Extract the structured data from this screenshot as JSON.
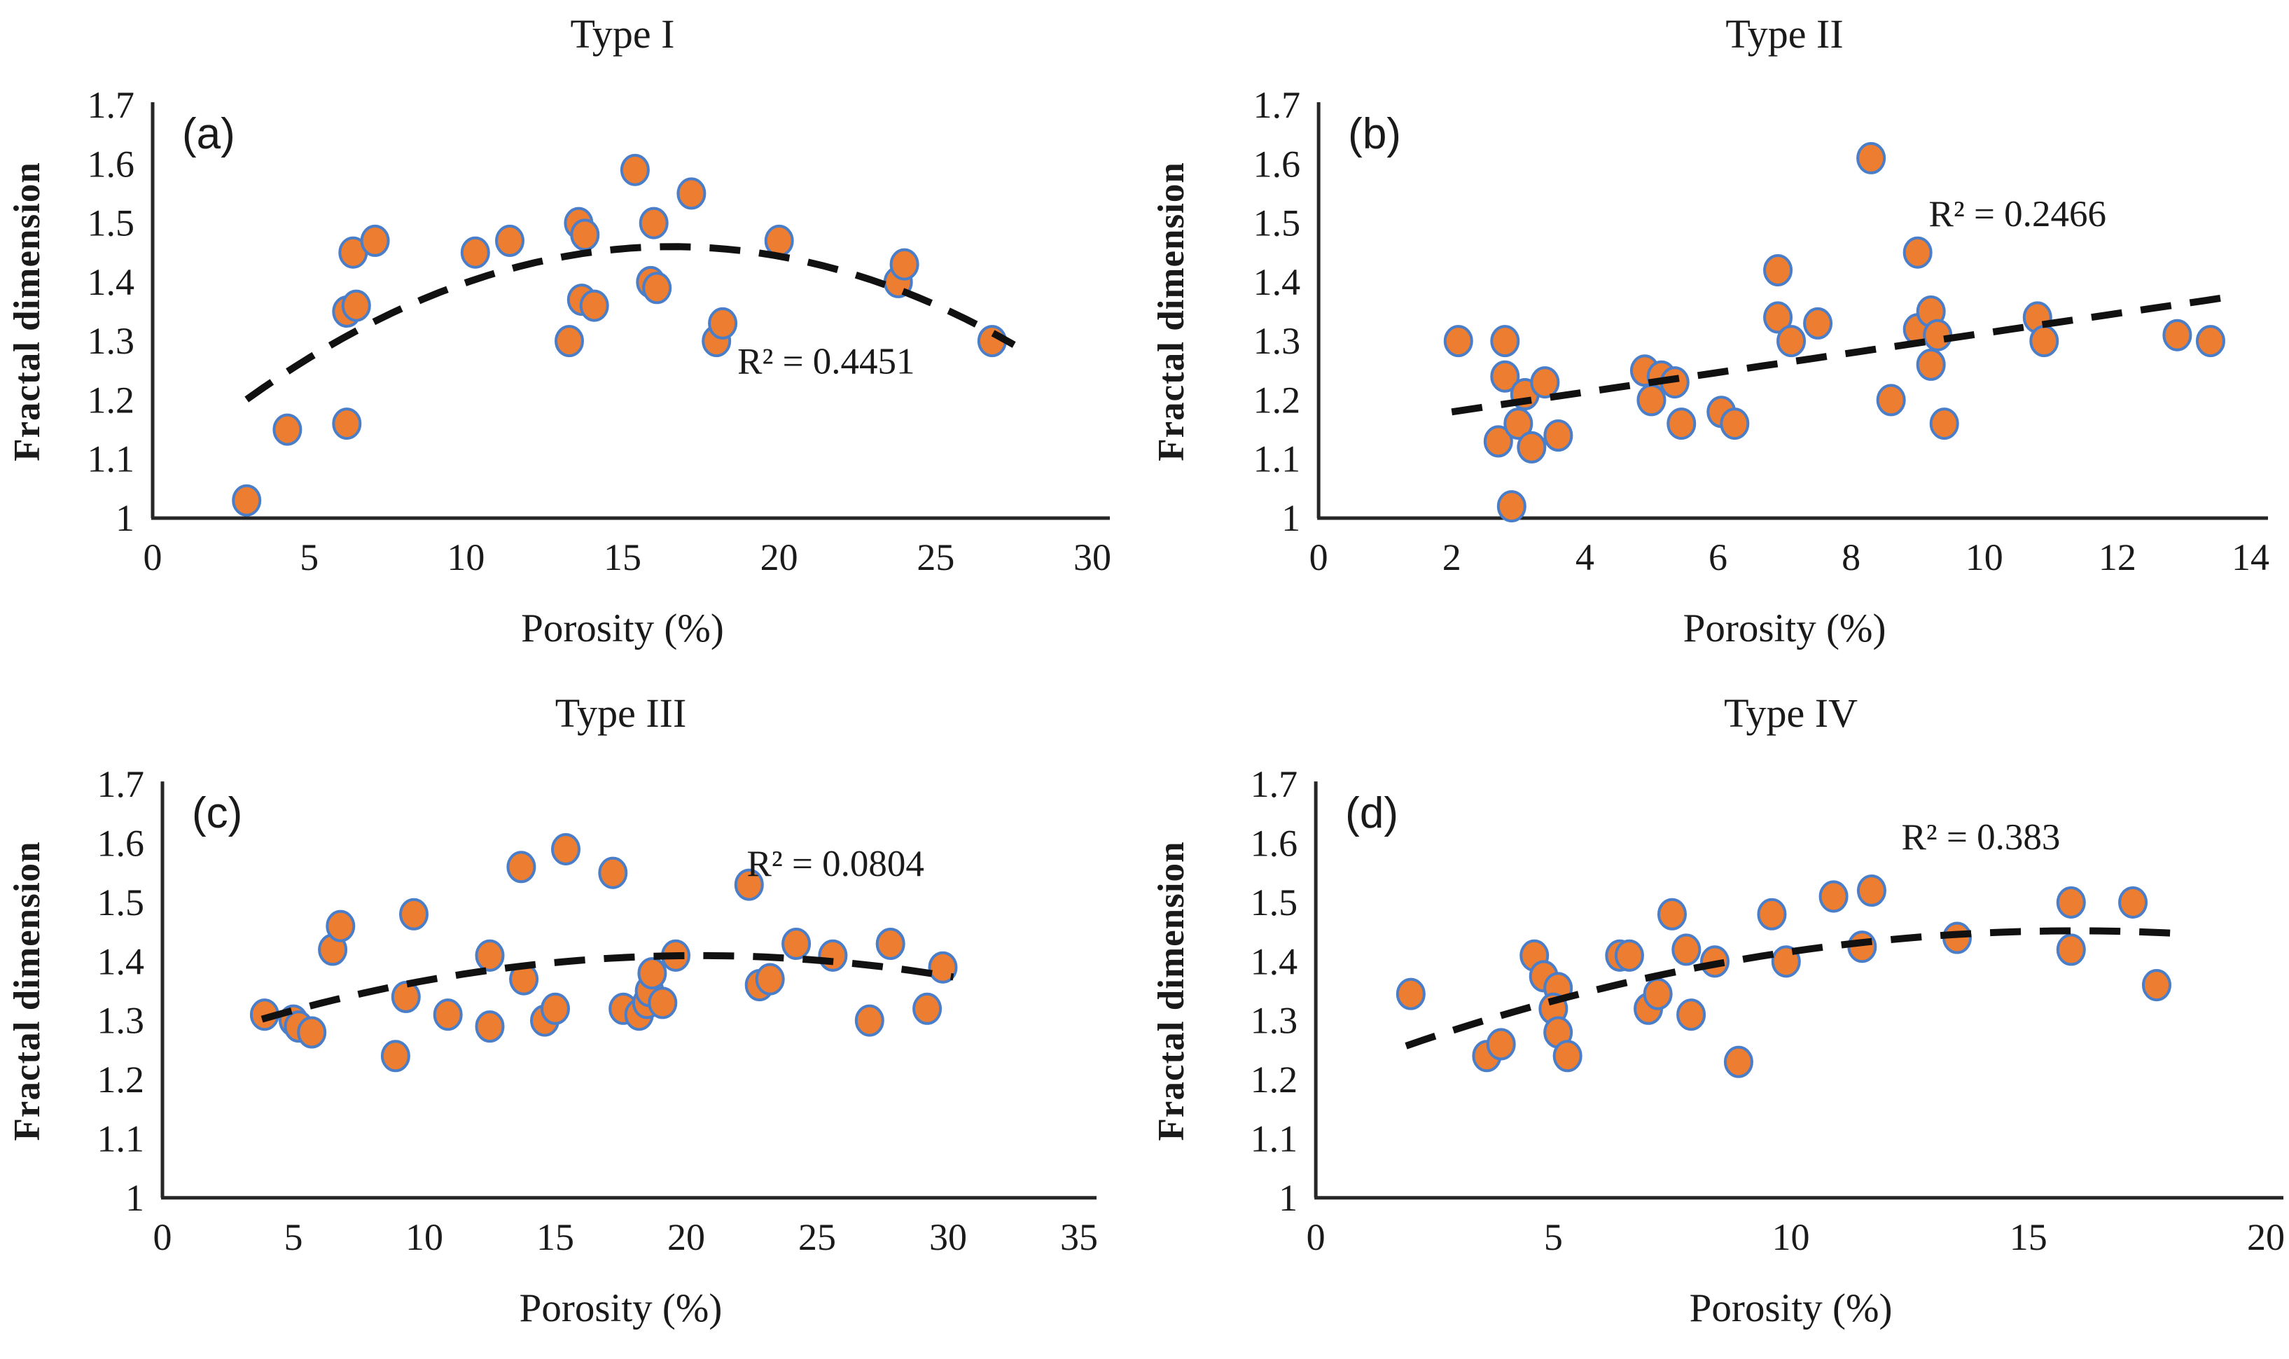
{
  "figure": {
    "colors": {
      "marker_fill": "#ED7D31",
      "marker_stroke": "#4a7ec9",
      "trend": "#111111",
      "axis": "#262626",
      "text": "#1a1a1a",
      "background": "#ffffff"
    }
  },
  "chart_data": [
    {
      "type": "scatter",
      "title": "Type I",
      "panel_label": "(a)",
      "xlabel": "Porosity (%)",
      "ylabel": "Fractal dimension",
      "r2_label": "R² = 0.4451",
      "r2_pos": {
        "x": 21.5,
        "y": 1.245
      },
      "xlim": [
        0,
        30
      ],
      "xticks": [
        0,
        5,
        10,
        15,
        20,
        25,
        30
      ],
      "ylim": [
        1,
        1.7
      ],
      "yticks": [
        "1.7",
        "1.6",
        "1.5",
        "1.4",
        "1.3",
        "1.2",
        "1.1",
        "1"
      ],
      "legend": "none",
      "grid": false,
      "points": [
        [
          3.0,
          1.03
        ],
        [
          4.3,
          1.15
        ],
        [
          6.2,
          1.16
        ],
        [
          6.2,
          1.35
        ],
        [
          6.5,
          1.36
        ],
        [
          6.4,
          1.45
        ],
        [
          7.1,
          1.47
        ],
        [
          10.3,
          1.45
        ],
        [
          11.4,
          1.47
        ],
        [
          13.3,
          1.3
        ],
        [
          13.6,
          1.5
        ],
        [
          13.8,
          1.48
        ],
        [
          13.7,
          1.37
        ],
        [
          14.1,
          1.36
        ],
        [
          15.4,
          1.59
        ],
        [
          16.0,
          1.5
        ],
        [
          15.9,
          1.4
        ],
        [
          16.1,
          1.39
        ],
        [
          17.2,
          1.55
        ],
        [
          18.0,
          1.3
        ],
        [
          18.2,
          1.33
        ],
        [
          20.0,
          1.47
        ],
        [
          23.8,
          1.4
        ],
        [
          24.0,
          1.43
        ],
        [
          26.8,
          1.3
        ]
      ],
      "trend": {
        "type": "polynomial-2",
        "a2": -0.0014,
        "a1": 0.04648,
        "a0": 1.0742,
        "x_start": 3.0,
        "x_end": 27.5
      }
    },
    {
      "type": "scatter",
      "title": "Type II",
      "panel_label": "(b)",
      "xlabel": "Porosity (%)",
      "ylabel": "Fractal dimension",
      "r2_label": "R² = 0.2466",
      "r2_pos": {
        "x": 10.5,
        "y": 1.495
      },
      "xlim": [
        0,
        14
      ],
      "xticks": [
        0,
        2,
        4,
        6,
        8,
        10,
        12,
        14
      ],
      "ylim": [
        1,
        1.7
      ],
      "yticks": [
        "1.7",
        "1.6",
        "1.5",
        "1.4",
        "1.3",
        "1.2",
        "1.1",
        "1"
      ],
      "legend": "none",
      "grid": false,
      "points": [
        [
          2.1,
          1.3
        ],
        [
          2.8,
          1.3
        ],
        [
          2.8,
          1.24
        ],
        [
          2.7,
          1.13
        ],
        [
          3.0,
          1.16
        ],
        [
          3.1,
          1.21
        ],
        [
          3.2,
          1.12
        ],
        [
          3.4,
          1.23
        ],
        [
          3.6,
          1.14
        ],
        [
          2.9,
          1.02
        ],
        [
          4.9,
          1.25
        ],
        [
          5.15,
          1.24
        ],
        [
          5.35,
          1.23
        ],
        [
          5.0,
          1.2
        ],
        [
          5.45,
          1.16
        ],
        [
          6.05,
          1.18
        ],
        [
          6.25,
          1.16
        ],
        [
          6.9,
          1.42
        ],
        [
          6.9,
          1.34
        ],
        [
          7.1,
          1.3
        ],
        [
          7.5,
          1.33
        ],
        [
          8.3,
          1.61
        ],
        [
          8.6,
          1.2
        ],
        [
          9.0,
          1.45
        ],
        [
          9.0,
          1.32
        ],
        [
          9.2,
          1.35
        ],
        [
          9.3,
          1.31
        ],
        [
          9.2,
          1.26
        ],
        [
          9.4,
          1.16
        ],
        [
          10.8,
          1.34
        ],
        [
          10.9,
          1.3
        ],
        [
          12.9,
          1.31
        ],
        [
          13.4,
          1.3
        ]
      ],
      "trend": {
        "type": "linear",
        "a2": 0,
        "a1": 0.01667,
        "a0": 1.1467,
        "x_start": 2.0,
        "x_end": 13.8
      }
    },
    {
      "type": "scatter",
      "title": "Type III",
      "panel_label": "(c)",
      "xlabel": "Porosity (%)",
      "ylabel": "Fractal dimension",
      "r2_label": "R² = 0.0804",
      "r2_pos": {
        "x": 25.7,
        "y": 1.545
      },
      "xlim": [
        0,
        35
      ],
      "xticks": [
        0,
        5,
        10,
        15,
        20,
        25,
        30,
        35
      ],
      "ylim": [
        1,
        1.7
      ],
      "yticks": [
        "1.7",
        "1.6",
        "1.5",
        "1.4",
        "1.3",
        "1.2",
        "1.1",
        "1"
      ],
      "legend": "none",
      "grid": false,
      "points": [
        [
          3.9,
          1.31
        ],
        [
          5.0,
          1.3
        ],
        [
          5.2,
          1.29
        ],
        [
          5.7,
          1.28
        ],
        [
          6.5,
          1.42
        ],
        [
          6.8,
          1.46
        ],
        [
          8.9,
          1.24
        ],
        [
          9.3,
          1.34
        ],
        [
          9.6,
          1.48
        ],
        [
          10.9,
          1.31
        ],
        [
          12.5,
          1.29
        ],
        [
          12.5,
          1.41
        ],
        [
          13.7,
          1.56
        ],
        [
          13.8,
          1.37
        ],
        [
          14.6,
          1.3
        ],
        [
          15.0,
          1.32
        ],
        [
          15.4,
          1.59
        ],
        [
          17.2,
          1.55
        ],
        [
          17.6,
          1.32
        ],
        [
          18.2,
          1.31
        ],
        [
          18.5,
          1.33
        ],
        [
          18.6,
          1.35
        ],
        [
          18.7,
          1.38
        ],
        [
          19.1,
          1.33
        ],
        [
          19.6,
          1.41
        ],
        [
          22.4,
          1.53
        ],
        [
          22.8,
          1.36
        ],
        [
          23.2,
          1.37
        ],
        [
          24.2,
          1.43
        ],
        [
          25.6,
          1.41
        ],
        [
          27.0,
          1.3
        ],
        [
          27.8,
          1.43
        ],
        [
          29.2,
          1.32
        ],
        [
          29.8,
          1.39
        ]
      ],
      "trend": {
        "type": "polynomial-2",
        "a2": -0.000386,
        "a1": 0.015826,
        "a0": 1.24778,
        "x_start": 3.8,
        "x_end": 30.2
      }
    },
    {
      "type": "scatter",
      "title": "Type IV",
      "panel_label": "(d)",
      "xlabel": "Porosity (%)",
      "ylabel": "Fractal dimension",
      "r2_label": "R² = 0.383",
      "r2_pos": {
        "x": 14.0,
        "y": 1.59
      },
      "xlim": [
        0,
        20
      ],
      "xticks": [
        0,
        5,
        10,
        15,
        20
      ],
      "ylim": [
        1,
        1.7
      ],
      "yticks": [
        "1.7",
        "1.6",
        "1.5",
        "1.4",
        "1.3",
        "1.2",
        "1.1",
        "1"
      ],
      "legend": "none",
      "grid": false,
      "points": [
        [
          2.0,
          1.345
        ],
        [
          3.6,
          1.24
        ],
        [
          3.9,
          1.26
        ],
        [
          4.6,
          1.41
        ],
        [
          4.8,
          1.375
        ],
        [
          5.1,
          1.355
        ],
        [
          5.0,
          1.32
        ],
        [
          5.1,
          1.28
        ],
        [
          5.3,
          1.24
        ],
        [
          6.4,
          1.41
        ],
        [
          6.6,
          1.41
        ],
        [
          7.0,
          1.32
        ],
        [
          7.2,
          1.345
        ],
        [
          7.5,
          1.48
        ],
        [
          7.8,
          1.42
        ],
        [
          7.9,
          1.31
        ],
        [
          8.4,
          1.4
        ],
        [
          8.9,
          1.23
        ],
        [
          9.6,
          1.48
        ],
        [
          9.9,
          1.4
        ],
        [
          10.9,
          1.51
        ],
        [
          11.5,
          1.425
        ],
        [
          11.7,
          1.52
        ],
        [
          13.5,
          1.44
        ],
        [
          15.9,
          1.5
        ],
        [
          15.9,
          1.42
        ],
        [
          17.2,
          1.5
        ],
        [
          17.7,
          1.36
        ]
      ],
      "trend": {
        "type": "polynomial-2",
        "a2": -0.00098,
        "a1": 0.03136,
        "a0": 1.2011,
        "x_start": 1.9,
        "x_end": 18.2
      }
    }
  ]
}
